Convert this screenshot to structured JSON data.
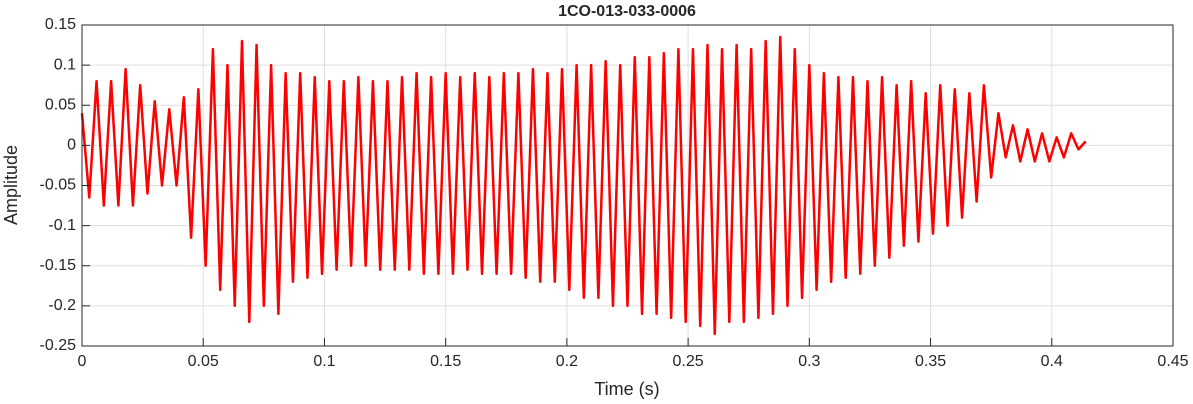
{
  "chart_data": {
    "type": "line",
    "title": "1CO-013-033-0006",
    "x_label": "Time (s)",
    "y_label": "Amplitude",
    "x": [
      0,
      0.003,
      0.006,
      0.009,
      0.012,
      0.015,
      0.018,
      0.021,
      0.024,
      0.027,
      0.03,
      0.033,
      0.036,
      0.039,
      0.042,
      0.045,
      0.048,
      0.051,
      0.054,
      0.057,
      0.06,
      0.063,
      0.066,
      0.069,
      0.072,
      0.075,
      0.078,
      0.081,
      0.084,
      0.087,
      0.09,
      0.093,
      0.096,
      0.099,
      0.102,
      0.105,
      0.108,
      0.111,
      0.114,
      0.117,
      0.12,
      0.123,
      0.126,
      0.129,
      0.132,
      0.135,
      0.138,
      0.141,
      0.144,
      0.147,
      0.15,
      0.153,
      0.156,
      0.159,
      0.162,
      0.165,
      0.168,
      0.171,
      0.174,
      0.177,
      0.18,
      0.183,
      0.186,
      0.189,
      0.192,
      0.195,
      0.198,
      0.201,
      0.204,
      0.207,
      0.21,
      0.213,
      0.216,
      0.219,
      0.222,
      0.225,
      0.228,
      0.231,
      0.234,
      0.237,
      0.24,
      0.243,
      0.246,
      0.249,
      0.252,
      0.255,
      0.258,
      0.261,
      0.264,
      0.267,
      0.27,
      0.273,
      0.276,
      0.279,
      0.282,
      0.285,
      0.288,
      0.291,
      0.294,
      0.297,
      0.3,
      0.303,
      0.306,
      0.309,
      0.312,
      0.315,
      0.318,
      0.321,
      0.324,
      0.327,
      0.33,
      0.333,
      0.336,
      0.339,
      0.342,
      0.345,
      0.348,
      0.351,
      0.354,
      0.357,
      0.36,
      0.363,
      0.366,
      0.369,
      0.372,
      0.375,
      0.378,
      0.381,
      0.384,
      0.387,
      0.39,
      0.393,
      0.396,
      0.399,
      0.402,
      0.405,
      0.408,
      0.411,
      0.414
    ],
    "series": [
      {
        "name": "Amplitude",
        "color": "#ff0000",
        "values": [
          0.04,
          -0.065,
          0.08,
          -0.075,
          0.08,
          -0.075,
          0.095,
          -0.075,
          0.075,
          -0.06,
          0.055,
          -0.05,
          0.045,
          -0.05,
          0.06,
          -0.115,
          0.07,
          -0.15,
          0.12,
          -0.18,
          0.1,
          -0.2,
          0.13,
          -0.22,
          0.125,
          -0.2,
          0.1,
          -0.21,
          0.09,
          -0.17,
          0.09,
          -0.165,
          0.085,
          -0.16,
          0.08,
          -0.155,
          0.08,
          -0.15,
          0.085,
          -0.15,
          0.08,
          -0.155,
          0.08,
          -0.155,
          0.085,
          -0.155,
          0.09,
          -0.16,
          0.085,
          -0.16,
          0.09,
          -0.16,
          0.085,
          -0.155,
          0.09,
          -0.16,
          0.085,
          -0.16,
          0.09,
          -0.16,
          0.09,
          -0.165,
          0.095,
          -0.17,
          0.09,
          -0.17,
          0.095,
          -0.18,
          0.1,
          -0.19,
          0.1,
          -0.19,
          0.105,
          -0.2,
          0.1,
          -0.2,
          0.11,
          -0.21,
          0.11,
          -0.21,
          0.115,
          -0.215,
          0.12,
          -0.22,
          0.12,
          -0.225,
          0.125,
          -0.235,
          0.12,
          -0.22,
          0.125,
          -0.22,
          0.12,
          -0.215,
          0.13,
          -0.21,
          0.135,
          -0.2,
          0.12,
          -0.19,
          0.1,
          -0.18,
          0.09,
          -0.17,
          0.085,
          -0.165,
          0.085,
          -0.16,
          0.08,
          -0.15,
          0.085,
          -0.14,
          0.075,
          -0.125,
          0.08,
          -0.12,
          0.065,
          -0.11,
          0.075,
          -0.1,
          0.07,
          -0.09,
          0.065,
          -0.07,
          0.075,
          -0.04,
          0.04,
          -0.015,
          0.025,
          -0.02,
          0.02,
          -0.02,
          0.015,
          -0.02,
          0.01,
          -0.015,
          0.015,
          -0.005,
          0.005
        ]
      }
    ],
    "xlim": [
      0,
      0.45
    ],
    "xticks": [
      0,
      0.05,
      0.1,
      0.15,
      0.2,
      0.25,
      0.3,
      0.35,
      0.4,
      0.45
    ],
    "ylim": [
      -0.25,
      0.15
    ],
    "yticks": [
      -0.25,
      -0.2,
      -0.15,
      -0.1,
      -0.05,
      0,
      0.05,
      0.1,
      0.15
    ],
    "grid": true
  }
}
